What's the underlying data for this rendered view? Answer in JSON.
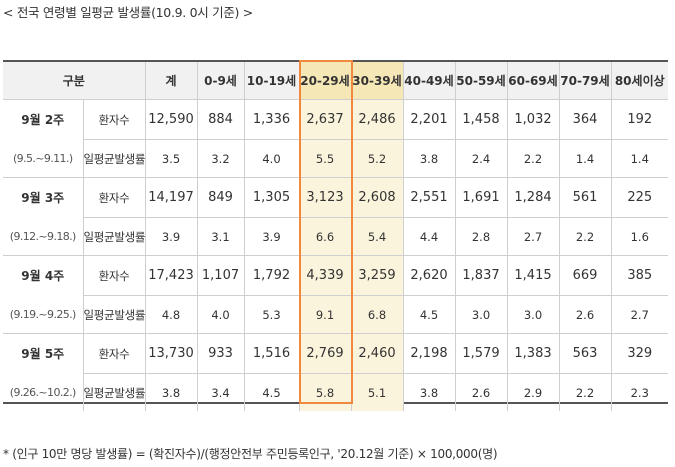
{
  "caption": "< 전국 연령별 일평균 발생률(10.9. 0시 기준) >",
  "table": {
    "header": [
      "구분",
      "계",
      "0-9세",
      "10-19세",
      "20-29세",
      "30-39세",
      "40-49세",
      "50-59세",
      "60-69세",
      "70-79세",
      "80세이상"
    ],
    "groups": [
      {
        "week": "9월 2주",
        "period": "(9.5.~9.11.)",
        "count_label": "환자수",
        "rate_label": "일평균발생률",
        "counts": [
          "12,590",
          "884",
          "1,336",
          "2,637",
          "2,486",
          "2,201",
          "1,458",
          "1,032",
          "364",
          "192"
        ],
        "rates": [
          "3.5",
          "3.2",
          "4.0",
          "5.5",
          "5.2",
          "3.8",
          "2.4",
          "2.2",
          "1.4",
          "1.4"
        ]
      },
      {
        "week": "9월 3주",
        "period": "(9.12.~9.18.)",
        "count_label": "환자수",
        "rate_label": "일평균발생률",
        "counts": [
          "14,197",
          "849",
          "1,305",
          "3,123",
          "2,608",
          "2,551",
          "1,691",
          "1,284",
          "561",
          "225"
        ],
        "rates": [
          "3.9",
          "3.1",
          "3.9",
          "6.6",
          "5.4",
          "4.4",
          "2.8",
          "2.7",
          "2.2",
          "1.6"
        ]
      },
      {
        "week": "9월 4주",
        "period": "(9.19.~9.25.)",
        "count_label": "환자수",
        "rate_label": "일평균발생률",
        "counts": [
          "17,423",
          "1,107",
          "1,792",
          "4,339",
          "3,259",
          "2,620",
          "1,837",
          "1,415",
          "669",
          "385"
        ],
        "rates": [
          "4.8",
          "4.0",
          "5.3",
          "9.1",
          "6.8",
          "4.5",
          "3.0",
          "3.0",
          "2.6",
          "2.7"
        ]
      },
      {
        "week": "9월 5주",
        "period": "(9.26.~10.2.)",
        "count_label": "환자수",
        "rate_label": "일평균발생률",
        "counts": [
          "13,730",
          "933",
          "1,516",
          "2,769",
          "2,460",
          "2,198",
          "1,579",
          "1,383",
          "563",
          "329"
        ],
        "rates": [
          "3.8",
          "3.4",
          "4.5",
          "5.8",
          "5.1",
          "3.8",
          "2.6",
          "2.9",
          "2.2",
          "2.3"
        ]
      }
    ]
  },
  "footnote": "* (인구 10만 명당 발생률) = (확진자수)/(행정안전부 주민등록인구, '20.12월 기준) × 100,000(명)",
  "colors": {
    "highlight_border": "#f0883e",
    "highlight_fill": "#fbf4dc",
    "header_fill": "#f1f1f1"
  }
}
